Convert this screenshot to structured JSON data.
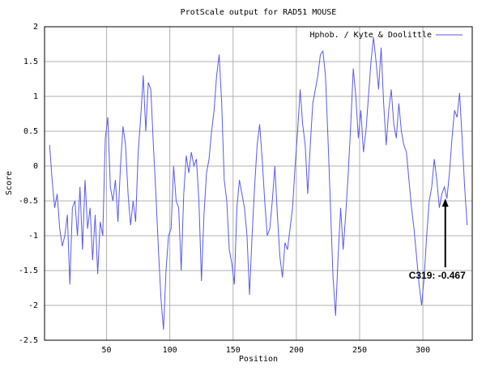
{
  "chart_data": {
    "type": "line",
    "title": "ProtScale output for RAD51 MOUSE",
    "x_label": "Position",
    "y_label": "Score",
    "xlim": [
      1,
      339
    ],
    "ylim": [
      -2.5,
      2
    ],
    "xticks": [
      50,
      100,
      150,
      200,
      250,
      300
    ],
    "yticks": [
      -2.5,
      -2,
      -1.5,
      -1,
      -0.5,
      0,
      0.5,
      1,
      1.5,
      2
    ],
    "grid": true,
    "legend": "upper right",
    "annotation": "C319: -0.467",
    "x": [
      5,
      7,
      9,
      11,
      13,
      15,
      17,
      19,
      21,
      23,
      25,
      27,
      29,
      31,
      33,
      35,
      37,
      39,
      41,
      43,
      45,
      47,
      49,
      51,
      53,
      55,
      57,
      59,
      61,
      63,
      65,
      67,
      69,
      71,
      73,
      75,
      77,
      79,
      81,
      83,
      85,
      87,
      89,
      91,
      93,
      95,
      97,
      99,
      101,
      103,
      105,
      107,
      109,
      111,
      113,
      115,
      117,
      119,
      121,
      123,
      125,
      127,
      129,
      131,
      133,
      135,
      137,
      139,
      141,
      143,
      145,
      147,
      149,
      151,
      153,
      155,
      157,
      159,
      161,
      163,
      165,
      167,
      169,
      171,
      173,
      175,
      177,
      179,
      181,
      183,
      185,
      187,
      189,
      191,
      193,
      195,
      197,
      199,
      201,
      203,
      205,
      207,
      209,
      211,
      213,
      215,
      217,
      219,
      221,
      223,
      225,
      227,
      229,
      231,
      233,
      235,
      237,
      239,
      241,
      243,
      245,
      247,
      249,
      251,
      253,
      255,
      257,
      259,
      261,
      263,
      265,
      267,
      269,
      271,
      273,
      275,
      277,
      279,
      281,
      283,
      285,
      287,
      289,
      291,
      293,
      295,
      297,
      299,
      301,
      303,
      305,
      307,
      309,
      311,
      313,
      315,
      317,
      319,
      321,
      323,
      325,
      327,
      329,
      331,
      333,
      335
    ],
    "series": [
      {
        "name": "Hphob. / Kyte & Doolittle",
        "color": "#5a5aee",
        "values": [
          0.3,
          -0.2,
          -0.6,
          -0.4,
          -0.9,
          -1.15,
          -1.0,
          -0.7,
          -1.7,
          -0.6,
          -0.5,
          -1.0,
          -0.3,
          -1.2,
          -0.2,
          -0.9,
          -0.6,
          -1.35,
          -0.7,
          -1.55,
          -0.8,
          -1.0,
          0.4,
          0.7,
          -0.3,
          -0.5,
          -0.2,
          -0.8,
          0.0,
          0.57,
          0.3,
          -0.4,
          -0.85,
          -0.5,
          -0.8,
          0.2,
          0.7,
          1.3,
          0.5,
          1.2,
          1.1,
          0.3,
          -0.4,
          -1.2,
          -1.9,
          -2.35,
          -1.5,
          -1.0,
          -0.9,
          0.0,
          -0.5,
          -0.6,
          -1.5,
          -0.4,
          0.15,
          -0.1,
          0.2,
          0.0,
          0.1,
          -0.5,
          -1.65,
          -0.7,
          -0.1,
          0.1,
          0.5,
          0.8,
          1.3,
          1.6,
          0.9,
          -0.2,
          -0.5,
          -1.2,
          -1.4,
          -1.7,
          -0.6,
          -0.2,
          -0.4,
          -0.6,
          -1.0,
          -1.85,
          -1.0,
          -0.3,
          0.3,
          0.6,
          0.1,
          -0.5,
          -1.0,
          -0.9,
          -0.5,
          0.0,
          -0.7,
          -1.3,
          -1.6,
          -1.1,
          -1.2,
          -0.9,
          -0.6,
          0.0,
          0.5,
          1.1,
          0.6,
          0.3,
          -0.4,
          0.3,
          0.9,
          1.1,
          1.3,
          1.6,
          1.65,
          1.3,
          0.4,
          -0.6,
          -1.6,
          -2.15,
          -1.3,
          -0.6,
          -1.2,
          -0.7,
          -0.1,
          0.6,
          1.4,
          1.0,
          0.4,
          0.8,
          0.2,
          0.5,
          1.0,
          1.5,
          1.85,
          1.5,
          1.1,
          1.7,
          0.9,
          0.3,
          0.8,
          1.1,
          0.6,
          0.4,
          0.9,
          0.5,
          0.3,
          0.2,
          -0.2,
          -0.6,
          -0.9,
          -1.3,
          -1.7,
          -2.0,
          -1.6,
          -1.0,
          -0.5,
          -0.3,
          0.1,
          -0.2,
          -0.6,
          -0.4,
          -0.3,
          -0.467,
          -0.1,
          0.4,
          0.8,
          0.7,
          1.05,
          0.4,
          -0.3,
          -0.85
        ]
      }
    ]
  }
}
